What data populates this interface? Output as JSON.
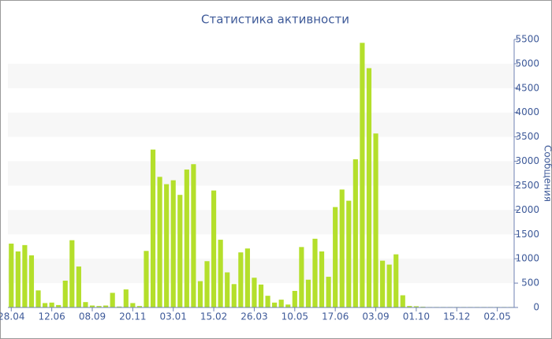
{
  "chart_data": {
    "type": "bar",
    "title": "Статистика активности",
    "y_label": "Сообщения",
    "categories": [
      "28.04",
      null,
      null,
      null,
      null,
      null,
      "12.06",
      null,
      null,
      null,
      null,
      null,
      "08.09",
      null,
      null,
      null,
      null,
      null,
      "20.11",
      null,
      null,
      null,
      null,
      null,
      "03.01",
      null,
      null,
      null,
      null,
      null,
      "15.02",
      null,
      null,
      null,
      null,
      null,
      "26.03",
      null,
      null,
      null,
      null,
      null,
      "10.05",
      null,
      null,
      null,
      null,
      null,
      "17.06",
      null,
      null,
      null,
      null,
      null,
      "03.09",
      null,
      null,
      null,
      null,
      null,
      "01.10",
      null,
      null,
      null,
      null,
      null,
      "15.12",
      null,
      null,
      null,
      null,
      null,
      "02.05",
      null,
      null
    ],
    "values": [
      1310,
      1150,
      1280,
      1070,
      350,
      90,
      100,
      50,
      550,
      1380,
      840,
      110,
      40,
      30,
      40,
      300,
      20,
      370,
      90,
      30,
      1160,
      3240,
      2680,
      2530,
      2610,
      2310,
      2830,
      2940,
      540,
      950,
      2400,
      1390,
      720,
      480,
      1130,
      1210,
      610,
      470,
      240,
      100,
      160,
      60,
      340,
      1240,
      570,
      1410,
      1150,
      630,
      2060,
      2420,
      2190,
      3040,
      5430,
      4910,
      3570,
      960,
      880,
      1090,
      250,
      30,
      25,
      15,
      10,
      10,
      10,
      10,
      10,
      10,
      10,
      10,
      10,
      10,
      10,
      10,
      10
    ],
    "color": "#b4df2b",
    "ylim": [
      0,
      5500
    ],
    "yticks": [
      0,
      500,
      1000,
      1500,
      2000,
      2500,
      3000,
      3500,
      4000,
      4500,
      5000,
      5500
    ],
    "grid": true
  }
}
